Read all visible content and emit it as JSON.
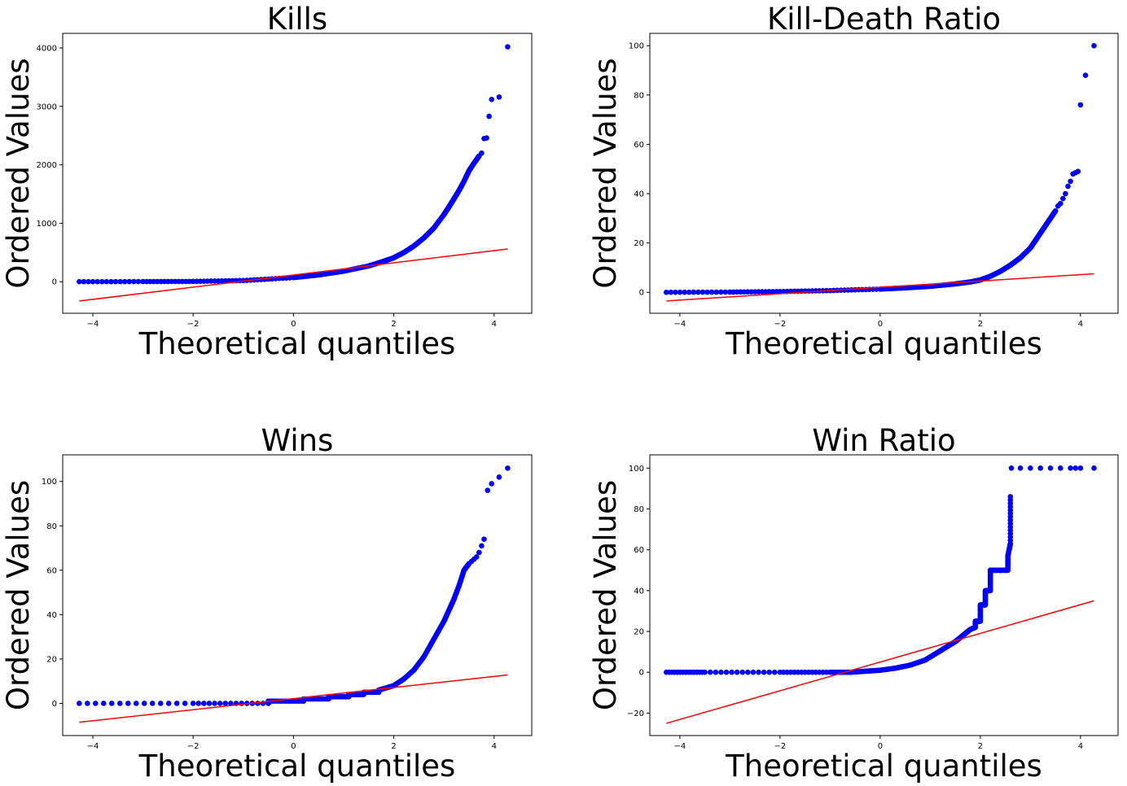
{
  "chart_data": [
    {
      "type": "scatter",
      "title": "Kills",
      "xlabel": "Theoretical quantiles",
      "ylabel": "Ordered Values",
      "xlim": [
        -4.6,
        4.75
      ],
      "ylim": [
        -540,
        4250
      ],
      "xticks": [
        -4,
        -2,
        0,
        2,
        4
      ],
      "xtick_labels": [
        "−4",
        "−2",
        "0",
        "2",
        "4"
      ],
      "yticks": [
        0,
        1000,
        2000,
        3000,
        4000
      ],
      "ytick_labels": [
        "0",
        "1000",
        "2000",
        "3000",
        "4000"
      ],
      "fit_line": {
        "x": [
          -4.27,
          4.27
        ],
        "y": [
          -330,
          560
        ]
      },
      "curve": {
        "x": [
          -4.27,
          -3.0,
          -2.0,
          -1.0,
          0.0,
          0.5,
          1.0,
          1.5,
          1.8,
          2.0,
          2.2,
          2.4,
          2.6,
          2.8,
          3.0,
          3.1,
          3.2,
          3.3,
          3.4,
          3.5,
          3.6,
          3.7
        ],
        "y": [
          0,
          2,
          5,
          20,
          70,
          115,
          180,
          270,
          350,
          410,
          500,
          610,
          750,
          920,
          1150,
          1280,
          1420,
          1560,
          1720,
          1900,
          2030,
          2150
        ]
      },
      "outliers": {
        "x": [
          3.75,
          3.8,
          3.85,
          3.9,
          3.95,
          4.1,
          4.27
        ],
        "y": [
          2200,
          2450,
          2460,
          2830,
          3120,
          3160,
          4020
        ]
      },
      "grid": false,
      "series": [
        {
          "color": "#0000ff",
          "marker": "o"
        },
        {
          "color": "#ff0000",
          "linestyle": "solid"
        }
      ]
    },
    {
      "type": "scatter",
      "title": "Kill-Death Ratio",
      "xlabel": "Theoretical quantiles",
      "ylabel": "Ordered Values",
      "xlim": [
        -4.6,
        4.75
      ],
      "ylim": [
        -8.5,
        105
      ],
      "xticks": [
        -4,
        -2,
        0,
        2,
        4
      ],
      "xtick_labels": [
        "−4",
        "−2",
        "0",
        "2",
        "4"
      ],
      "yticks": [
        0,
        20,
        40,
        60,
        80,
        100
      ],
      "ytick_labels": [
        "0",
        "20",
        "40",
        "60",
        "80",
        "100"
      ],
      "fit_line": {
        "x": [
          -4.27,
          4.27
        ],
        "y": [
          -3.5,
          7.5
        ]
      },
      "curve": {
        "x": [
          -4.27,
          -3.0,
          -2.0,
          -1.0,
          0.0,
          0.5,
          1.0,
          1.5,
          1.8,
          2.0,
          2.2,
          2.4,
          2.6,
          2.8,
          3.0,
          3.1,
          3.2,
          3.3,
          3.4,
          3.5
        ],
        "y": [
          0,
          0.1,
          0.3,
          0.7,
          1.3,
          1.8,
          2.4,
          3.4,
          4.2,
          5.0,
          6.5,
          8.5,
          11,
          14,
          18,
          21,
          24,
          27,
          30,
          33
        ]
      },
      "outliers": {
        "x": [
          3.55,
          3.6,
          3.65,
          3.7,
          3.75,
          3.8,
          3.85,
          3.9,
          3.95,
          4.0,
          4.1,
          4.27
        ],
        "y": [
          35,
          36,
          38,
          40,
          43,
          45,
          48,
          48.5,
          49,
          76,
          88,
          100
        ]
      },
      "grid": false,
      "series": [
        {
          "color": "#0000ff",
          "marker": "o"
        },
        {
          "color": "#ff0000",
          "linestyle": "solid"
        }
      ]
    },
    {
      "type": "scatter",
      "title": "Wins",
      "xlabel": "Theoretical quantiles",
      "ylabel": "Ordered Values",
      "xlim": [
        -4.6,
        4.75
      ],
      "ylim": [
        -14.5,
        112
      ],
      "xticks": [
        -4,
        -2,
        0,
        2,
        4
      ],
      "xtick_labels": [
        "−4",
        "−2",
        "0",
        "2",
        "4"
      ],
      "yticks": [
        0,
        20,
        40,
        60,
        80,
        100
      ],
      "ytick_labels": [
        "0",
        "20",
        "40",
        "60",
        "80",
        "100"
      ],
      "fit_line": {
        "x": [
          -4.27,
          4.27
        ],
        "y": [
          -8.5,
          12.8
        ]
      },
      "curve": {
        "x": [
          -4.27,
          -2.0,
          -0.5,
          -0.5,
          0.2,
          0.2,
          0.7,
          0.7,
          1.1,
          1.1,
          1.4,
          1.4,
          1.7,
          1.7,
          2.0,
          2.2,
          2.4,
          2.6,
          2.8,
          3.0,
          3.1,
          3.2,
          3.3,
          3.4,
          3.5
        ],
        "y": [
          0,
          0,
          0,
          1,
          1,
          2,
          2,
          3,
          3,
          4,
          4,
          5,
          5,
          6,
          8,
          11,
          15,
          21,
          29,
          37,
          42,
          47,
          53,
          60,
          63
        ]
      },
      "outliers": {
        "x": [
          3.55,
          3.6,
          3.65,
          3.7,
          3.75,
          3.8,
          3.87,
          3.95,
          4.1,
          4.27
        ],
        "y": [
          64,
          65,
          66,
          68,
          71,
          74,
          96,
          99,
          102,
          106
        ]
      },
      "grid": false,
      "series": [
        {
          "color": "#0000ff",
          "marker": "o"
        },
        {
          "color": "#ff0000",
          "linestyle": "solid"
        }
      ]
    },
    {
      "type": "scatter",
      "title": "Win Ratio",
      "xlabel": "Theoretical quantiles",
      "ylabel": "Ordered Values",
      "xlim": [
        -4.6,
        4.75
      ],
      "ylim": [
        -31,
        106.5
      ],
      "xticks": [
        -4,
        -2,
        0,
        2,
        4
      ],
      "xtick_labels": [
        "−4",
        "−2",
        "0",
        "2",
        "4"
      ],
      "yticks": [
        -20,
        0,
        20,
        40,
        60,
        80,
        100
      ],
      "ytick_labels": [
        "−20",
        "0",
        "20",
        "40",
        "60",
        "80",
        "100"
      ],
      "fit_line": {
        "x": [
          -4.27,
          4.27
        ],
        "y": [
          -25,
          35
        ]
      },
      "curve": {
        "x": [
          -4.27,
          -3.5,
          -2.0,
          -1.0,
          -0.6,
          -0.3,
          0.0,
          0.3,
          0.6,
          0.9,
          1.1,
          1.3,
          1.5,
          1.6,
          1.7,
          1.8,
          1.9,
          1.9,
          2.0,
          2.0,
          2.1,
          2.1,
          2.2,
          2.2,
          2.3,
          2.3,
          2.4,
          2.4,
          2.5,
          2.55,
          2.55,
          2.6,
          2.6
        ],
        "y": [
          0,
          0,
          0,
          0,
          0,
          0.5,
          1,
          2,
          3.5,
          6,
          9,
          12,
          15,
          17,
          19,
          21,
          22,
          25,
          25,
          33,
          33,
          40,
          40,
          50,
          50,
          50,
          50,
          50,
          50,
          50,
          57,
          63,
          86
        ]
      },
      "outliers": {
        "x": [
          2.62,
          2.8,
          3.0,
          3.2,
          3.4,
          3.6,
          3.8,
          3.9,
          4.0,
          4.27
        ],
        "y": [
          100,
          100,
          100,
          100,
          100,
          100,
          100,
          100,
          100,
          100
        ]
      },
      "grid": false,
      "series": [
        {
          "color": "#0000ff",
          "marker": "o"
        },
        {
          "color": "#ff0000",
          "linestyle": "solid"
        }
      ]
    }
  ]
}
